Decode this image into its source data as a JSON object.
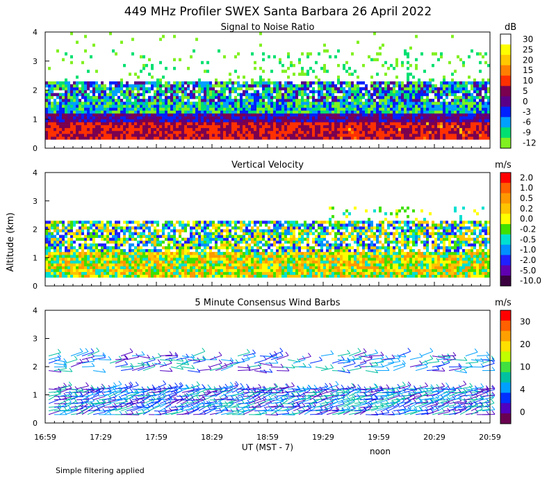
{
  "title": "449 MHz Profiler SWEX Santa Barbara 26 April 2022",
  "y_axis_label": "Altitude (km)",
  "x_axis_label": "UT  (MST - 7)",
  "noon_label": "noon",
  "footnote": "Simple filtering applied",
  "chart_data": [
    {
      "type": "heatmap",
      "title": "Signal to Noise Ratio",
      "unit": "dB",
      "ylim": [
        0,
        4
      ],
      "yticks": [
        "0",
        "1",
        "2",
        "3",
        "4"
      ],
      "x_ticks": [
        "16:59",
        "17:29",
        "17:59",
        "18:29",
        "18:59",
        "19:29",
        "19:59",
        "20:29",
        "20:59"
      ],
      "x_range_hours": [
        16.983,
        20.983
      ],
      "colorbar_labels": [
        "30",
        "25",
        "20",
        "15",
        "10",
        "5",
        "0",
        "-3",
        "-6",
        "-9",
        "-12"
      ],
      "colorbar_colors": [
        "#ffffff",
        "#ffff00",
        "#ffc800",
        "#ff8000",
        "#ff3000",
        "#7a0050",
        "#5a0088",
        "#0020ff",
        "#00a0ff",
        "#00e070",
        "#80f020"
      ],
      "description_values": "Strong echo 0.3-1.2 km (5-10 dB), moderate 1.2-2.3 km, sparse above; isolated cells near 2.3-3 km after 19:45"
    },
    {
      "type": "heatmap",
      "title": "Vertical Velocity",
      "unit": "m/s",
      "ylim": [
        0,
        4
      ],
      "yticks": [
        "0",
        "1",
        "2",
        "3",
        "4"
      ],
      "x_ticks": [
        "16:59",
        "17:29",
        "17:59",
        "18:29",
        "18:59",
        "19:29",
        "19:59",
        "20:29",
        "20:59"
      ],
      "colorbar_labels": [
        "2.0",
        "1.0",
        "0.5",
        "0.2",
        "0.0",
        "-0.2",
        "-0.5",
        "-1.0",
        "-2.0",
        "-5.0",
        "-10.0"
      ],
      "colorbar_colors": [
        "#ff0000",
        "#ff6000",
        "#ff9800",
        "#ffc400",
        "#ffff00",
        "#40e000",
        "#00e0d0",
        "#0090ff",
        "#2020ff",
        "#6000b0",
        "#3a0040"
      ]
    },
    {
      "type": "barbs",
      "title": "5 Minute Consensus Wind Barbs",
      "unit": "m/s",
      "ylim": [
        0,
        4
      ],
      "yticks": [
        "0",
        "1",
        "2",
        "3",
        "4"
      ],
      "x_ticks": [
        "16:59",
        "17:29",
        "17:59",
        "18:29",
        "18:59",
        "19:29",
        "19:59",
        "20:29",
        "20:59"
      ],
      "colorbar_labels": [
        "30",
        "20",
        "10",
        "4",
        "0"
      ],
      "colorbar_colors": [
        "#ff0000",
        "#ff6000",
        "#ffa000",
        "#ffe000",
        "#c0ff00",
        "#40e040",
        "#00c0a0",
        "#00a0ff",
        "#0030ff",
        "#5000c0",
        "#6a0050"
      ]
    }
  ]
}
